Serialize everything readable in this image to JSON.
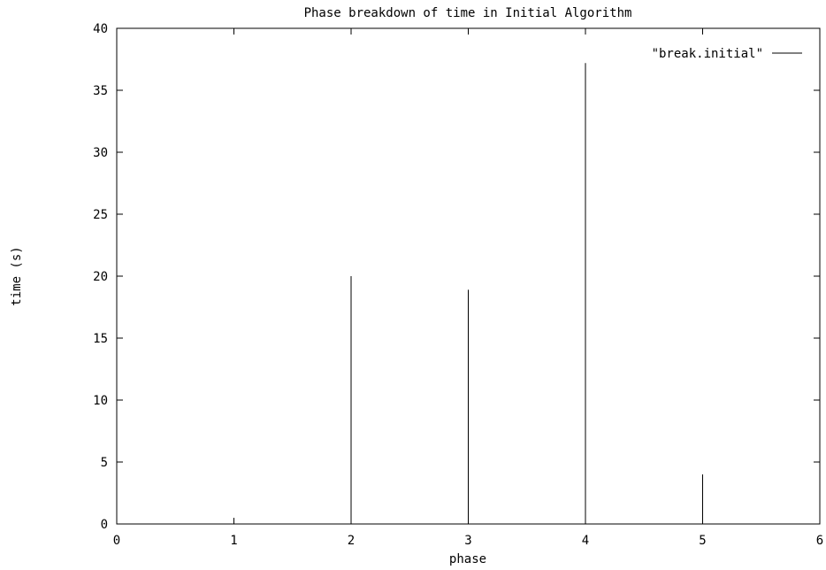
{
  "chart_data": {
    "type": "bar",
    "title": "Phase breakdown of time in Initial Algorithm",
    "xlabel": "phase",
    "ylabel": "time (s)",
    "xlim": [
      0,
      6
    ],
    "ylim": [
      0,
      40
    ],
    "xticks": [
      0,
      1,
      2,
      3,
      4,
      5,
      6
    ],
    "yticks": [
      0,
      5,
      10,
      15,
      20,
      25,
      30,
      35,
      40
    ],
    "grid": false,
    "legend_position": "top-right",
    "series": [
      {
        "name": "\"break.initial\"",
        "style": "impulses",
        "color": "#000000",
        "x": [
          1,
          2,
          3,
          4,
          5
        ],
        "values": [
          0,
          20,
          18.9,
          37.2,
          4
        ]
      }
    ]
  }
}
